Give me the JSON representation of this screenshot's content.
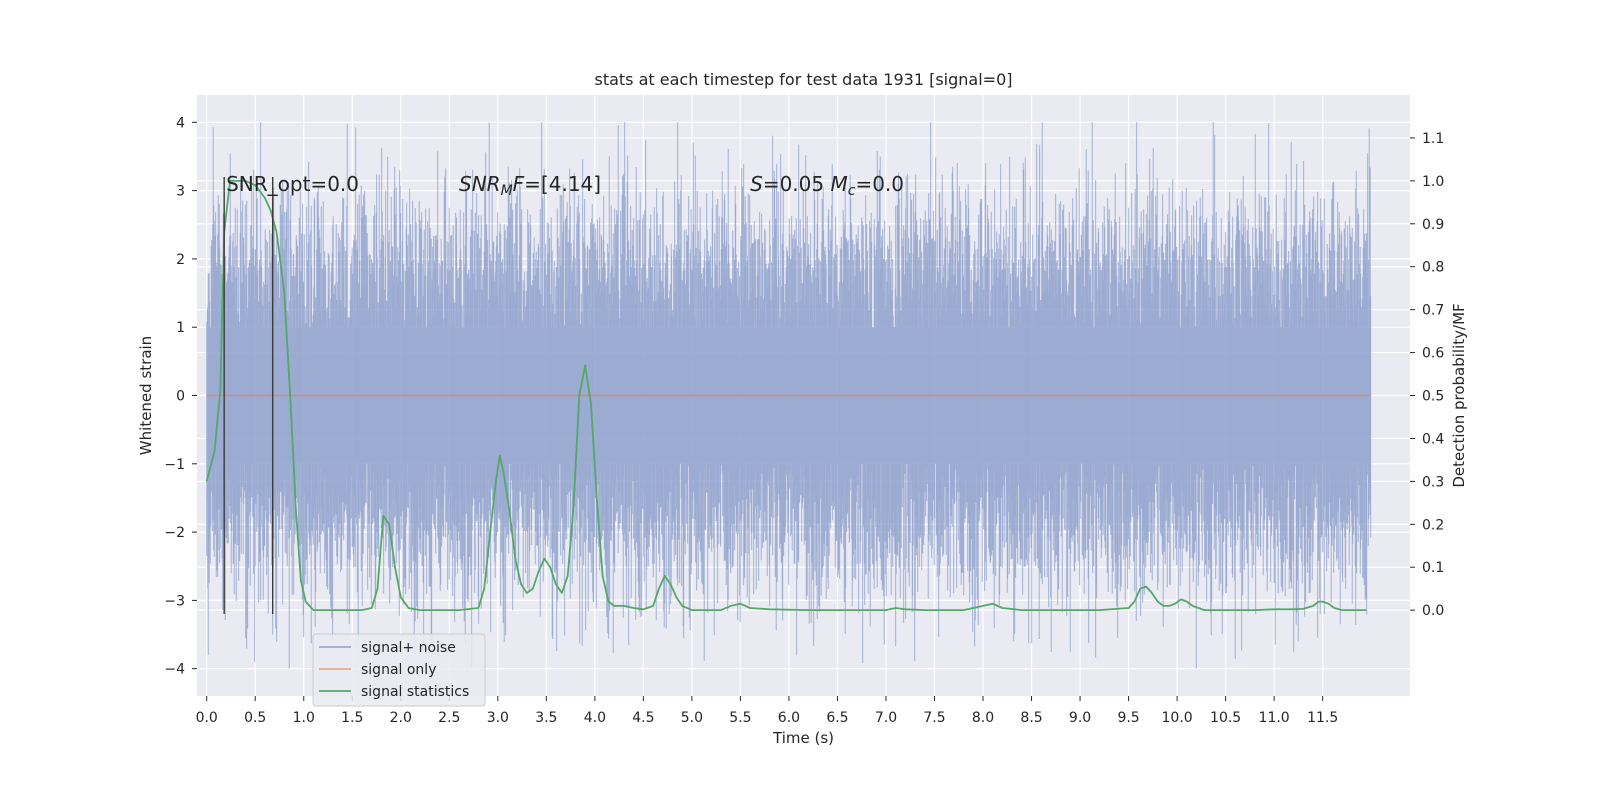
{
  "chart_data": {
    "type": "line",
    "title": "stats at each timestep for test data 1931 [signal=0]",
    "xlabel": "Time (s)",
    "ylabel_left": "Whitened strain",
    "ylabel_right": "Detection probability/MF",
    "xlim": [
      -0.1,
      12.4
    ],
    "ylim_left": [
      -4.4,
      4.4
    ],
    "ylim_right": [
      -0.2,
      1.2
    ],
    "xticks": [
      0.0,
      0.5,
      1.0,
      1.5,
      2.0,
      2.5,
      3.0,
      3.5,
      4.0,
      4.5,
      5.0,
      5.5,
      6.0,
      6.5,
      7.0,
      7.5,
      8.0,
      8.5,
      9.0,
      9.5,
      10.0,
      10.5,
      11.0,
      11.5
    ],
    "xtick_labels": [
      "0.0",
      "0.5",
      "1.0",
      "1.5",
      "2.0",
      "2.5",
      "3.0",
      "3.5",
      "4.0",
      "4.5",
      "5.0",
      "5.5",
      "6.0",
      "6.5",
      "7.0",
      "7.5",
      "8.0",
      "8.5",
      "9.0",
      "9.5",
      "10.0",
      "10.5",
      "11.0",
      "11.5"
    ],
    "yticks_left": [
      -4,
      -3,
      -2,
      -1,
      0,
      1,
      2,
      3,
      4
    ],
    "ytick_labels_left": [
      "−4",
      "−3",
      "−2",
      "−1",
      "0",
      "1",
      "2",
      "3",
      "4"
    ],
    "yticks_right": [
      0.0,
      0.1,
      0.2,
      0.3,
      0.4,
      0.5,
      0.6,
      0.7,
      0.8,
      0.9,
      1.0,
      1.1
    ],
    "ytick_labels_right": [
      "0.0",
      "0.1",
      "0.2",
      "0.3",
      "0.4",
      "0.5",
      "0.6",
      "0.7",
      "0.8",
      "0.9",
      "1.0",
      "1.1"
    ],
    "grid": true,
    "legend": "lower-left",
    "annotations": [
      {
        "text": "SNR_opt=0.0",
        "x": 0.2,
        "y": 3.1
      },
      {
        "text": "SNR_MF=[4.14]",
        "x": 2.6,
        "y": 3.1
      },
      {
        "text": "S=0.05   M_c=0.0",
        "x": 5.6,
        "y": 3.1
      }
    ],
    "vlines": [
      {
        "x": 0.18,
        "y": [
          -3.2,
          3.2
        ]
      },
      {
        "x": 0.68,
        "y": [
          -3.2,
          3.2
        ]
      }
    ],
    "series": [
      {
        "name": "signal+ noise",
        "color": "#8da0cb",
        "axis": "left",
        "description_values": "dense whitened noise, time 0.0 to 12.0 s at 4096 Hz, amplitude mostly within ±2.2, extremes about ±4.0",
        "x_range": [
          0.0,
          12.0
        ],
        "envelope": [
          -4.0,
          4.0
        ]
      },
      {
        "name": "signal only",
        "color": "#dd8452",
        "axis": "left",
        "x": [
          0.0,
          12.0
        ],
        "y": [
          0.0,
          0.0
        ]
      },
      {
        "name": "signal statistics",
        "color": "#55a868",
        "axis": "right",
        "x": [
          0.0,
          0.08,
          0.14,
          0.18,
          0.24,
          0.3,
          0.4,
          0.5,
          0.6,
          0.66,
          0.72,
          0.8,
          0.86,
          0.92,
          0.97,
          1.02,
          1.1,
          1.2,
          1.4,
          1.6,
          1.7,
          1.76,
          1.82,
          1.88,
          1.94,
          2.0,
          2.08,
          2.2,
          2.4,
          2.6,
          2.8,
          2.86,
          2.92,
          2.98,
          3.02,
          3.06,
          3.12,
          3.18,
          3.24,
          3.3,
          3.36,
          3.42,
          3.48,
          3.54,
          3.6,
          3.66,
          3.72,
          3.78,
          3.84,
          3.9,
          3.96,
          4.02,
          4.08,
          4.14,
          4.2,
          4.3,
          4.4,
          4.5,
          4.6,
          4.66,
          4.72,
          4.78,
          4.84,
          4.9,
          5.0,
          5.2,
          5.3,
          5.4,
          5.5,
          5.6,
          5.8,
          6.2,
          6.6,
          7.0,
          7.1,
          7.2,
          7.4,
          7.8,
          7.9,
          8.0,
          8.1,
          8.2,
          8.4,
          8.8,
          9.2,
          9.5,
          9.56,
          9.62,
          9.68,
          9.74,
          9.8,
          9.86,
          9.92,
          9.98,
          10.04,
          10.1,
          10.16,
          10.22,
          10.28,
          10.4,
          10.6,
          10.8,
          11.0,
          11.2,
          11.3,
          11.4,
          11.46,
          11.5,
          11.56,
          11.62,
          11.7,
          11.8,
          11.9,
          11.95
        ],
        "y": [
          0.3,
          0.37,
          0.51,
          0.88,
          1.0,
          1.0,
          1.0,
          0.99,
          0.96,
          0.93,
          0.88,
          0.74,
          0.5,
          0.23,
          0.07,
          0.02,
          0.0,
          0.0,
          0.0,
          0.0,
          0.005,
          0.05,
          0.22,
          0.2,
          0.1,
          0.03,
          0.005,
          0.0,
          0.0,
          0.0,
          0.005,
          0.05,
          0.18,
          0.3,
          0.36,
          0.32,
          0.23,
          0.12,
          0.06,
          0.04,
          0.05,
          0.09,
          0.12,
          0.1,
          0.06,
          0.04,
          0.08,
          0.24,
          0.5,
          0.57,
          0.48,
          0.26,
          0.08,
          0.02,
          0.01,
          0.01,
          0.005,
          0.002,
          0.01,
          0.05,
          0.08,
          0.06,
          0.03,
          0.01,
          0.0,
          0.0,
          0.0,
          0.01,
          0.015,
          0.005,
          0.002,
          0.0,
          0.0,
          0.0,
          0.005,
          0.002,
          0.0,
          0.0,
          0.005,
          0.01,
          0.015,
          0.005,
          0.0,
          0.0,
          0.0,
          0.005,
          0.02,
          0.05,
          0.055,
          0.04,
          0.02,
          0.01,
          0.01,
          0.015,
          0.025,
          0.02,
          0.01,
          0.005,
          0.0,
          0.0,
          0.0,
          0.0,
          0.002,
          0.002,
          0.003,
          0.01,
          0.02,
          0.02,
          0.015,
          0.005,
          0.0,
          0.0,
          0.0,
          0.0
        ]
      }
    ]
  }
}
